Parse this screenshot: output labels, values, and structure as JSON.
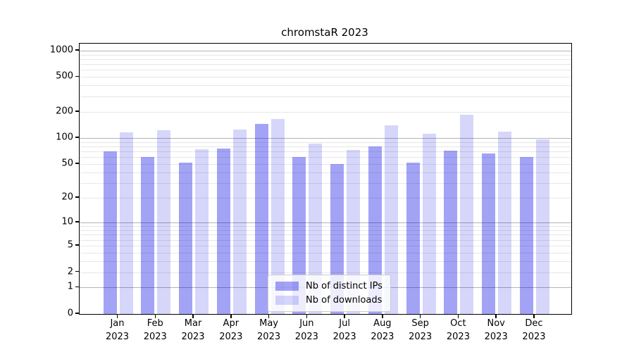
{
  "chart_data": {
    "type": "bar",
    "title": "chromstaR 2023",
    "categories": [
      "Jan",
      "Feb",
      "Mar",
      "Apr",
      "May",
      "Jun",
      "Jul",
      "Aug",
      "Sep",
      "Oct",
      "Nov",
      "Dec"
    ],
    "year_label": "2023",
    "series": [
      {
        "name": "Nb of distinct IPs",
        "color": "rgba(0,0,230,0.36)",
        "values": [
          70,
          60,
          52,
          76,
          145,
          60,
          50,
          80,
          52,
          72,
          67,
          61
        ]
      },
      {
        "name": "Nb of downloads",
        "color": "rgba(0,0,230,0.16)",
        "values": [
          117,
          124,
          74,
          126,
          165,
          87,
          73,
          140,
          111,
          185,
          118,
          96
        ]
      }
    ],
    "yticks": [
      0,
      1,
      2,
      5,
      10,
      20,
      50,
      100,
      200,
      500,
      1000
    ],
    "y_scale": "log10(value+1)",
    "ylim": [
      0,
      1200
    ],
    "xlabel": "",
    "ylabel": "",
    "grid": "horizontal",
    "legend_position": "lower-center",
    "colors": {
      "grid_major": "#b3b3b3",
      "grid_minor": "#e7e7e7",
      "frame": "#000000",
      "text": "#000000",
      "background": "#ffffff"
    }
  }
}
